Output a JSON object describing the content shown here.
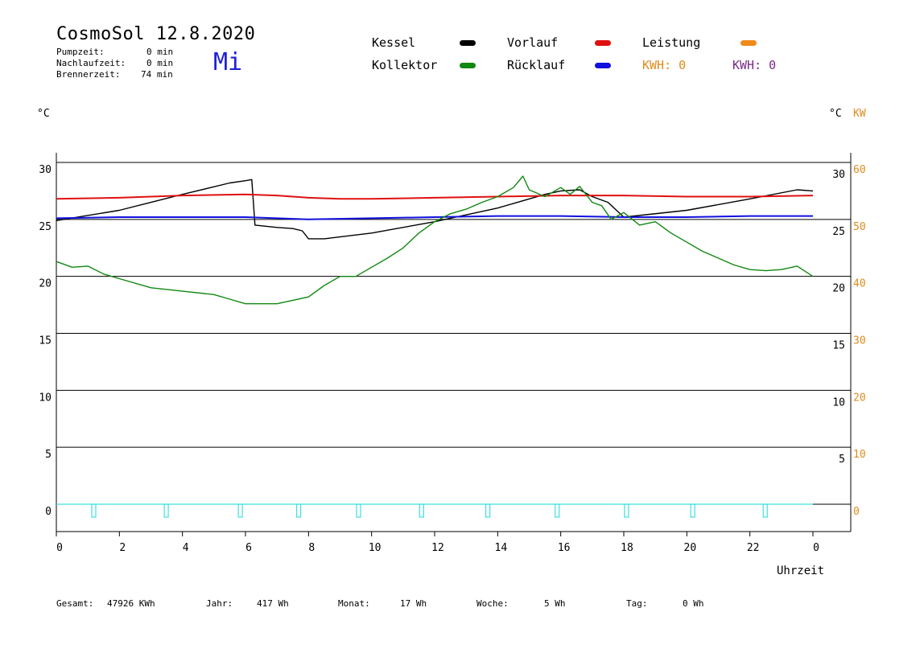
{
  "header": {
    "title": "CosmoSol 12.8.2020",
    "day": "Mi",
    "stats": [
      {
        "label": "Pumpzeit:",
        "value": "0 min"
      },
      {
        "label": "Nachlaufzeit:",
        "value": "0 min"
      },
      {
        "label": "Brennerzeit:",
        "value": "74 min"
      }
    ]
  },
  "legend": {
    "kessel": {
      "label": "Kessel",
      "color": "#000000"
    },
    "vorlauf": {
      "label": "Vorlauf",
      "color": "#e01010"
    },
    "leistung": {
      "label": "Leistung",
      "color": "#f08a1a"
    },
    "kollektor": {
      "label": "Kollektor",
      "color": "#118811"
    },
    "ruecklauf": {
      "label": "Rücklauf",
      "color": "#1010e0"
    },
    "kwh_orange": "KWH: 0",
    "kwh_purple": "KWH: 0"
  },
  "axes": {
    "left_unit": "°C",
    "right_unit_c": "°C",
    "right_unit_kw": "KW",
    "xlabel": "Uhrzeit"
  },
  "footer": {
    "gesamt_label": "Gesamt:",
    "gesamt_value": "47926 KWh",
    "jahr_label": "Jahr:",
    "jahr_value": "417 Wh",
    "monat_label": "Monat:",
    "monat_value": "17 Wh",
    "woche_label": "Woche:",
    "woche_value": "5 Wh",
    "tag_label": "Tag:",
    "tag_value": "0 Wh"
  },
  "chart_data": {
    "type": "line",
    "xlim": [
      0,
      24
    ],
    "ylim_left": [
      0,
      30
    ],
    "ylim_right_kw": [
      0,
      60
    ],
    "grid": true,
    "x_ticks": [
      "0",
      "2",
      "4",
      "6",
      "8",
      "10",
      "12",
      "14",
      "16",
      "18",
      "20",
      "22",
      "0"
    ],
    "y_ticks_left": [
      "30",
      "25",
      "20",
      "15",
      "10",
      "5",
      "0"
    ],
    "y_ticks_right_c": [
      "30",
      "25",
      "20",
      "15",
      "10",
      "5"
    ],
    "y_ticks_right_kw": [
      "60",
      "50",
      "40",
      "30",
      "20",
      "10",
      "0"
    ],
    "series": [
      {
        "name": "Kessel",
        "color": "#000000",
        "x": [
          0,
          2,
          4,
          5.5,
          6,
          6.2,
          6.3,
          7,
          7.5,
          7.8,
          8,
          8.5,
          10,
          12,
          14,
          15.5,
          16,
          16.6,
          17,
          17.5,
          18,
          20,
          22,
          23.5,
          24
        ],
        "y": [
          24.9,
          25.8,
          27.2,
          28.2,
          28.4,
          28.5,
          24.5,
          24.3,
          24.2,
          24.0,
          23.3,
          23.3,
          23.8,
          24.8,
          26.0,
          27.2,
          27.5,
          27.6,
          27.0,
          26.5,
          25.2,
          25.8,
          26.8,
          27.6,
          27.5
        ]
      },
      {
        "name": "Vorlauf",
        "color": "#e01010",
        "x": [
          0,
          2,
          4,
          6,
          7,
          8,
          9,
          10,
          12,
          14,
          16,
          18,
          20,
          22,
          24
        ],
        "y": [
          26.8,
          26.9,
          27.1,
          27.2,
          27.1,
          26.9,
          26.8,
          26.8,
          26.9,
          27.0,
          27.1,
          27.1,
          27.0,
          27.0,
          27.1
        ]
      },
      {
        "name": "Rücklauf",
        "color": "#1010e0",
        "x": [
          0,
          2,
          4,
          6,
          8,
          10,
          12,
          14,
          16,
          18,
          20,
          22,
          24
        ],
        "y": [
          25.1,
          25.2,
          25.2,
          25.2,
          25.0,
          25.1,
          25.2,
          25.3,
          25.3,
          25.2,
          25.2,
          25.3,
          25.3
        ]
      },
      {
        "name": "Kollektor",
        "color": "#118811",
        "x": [
          0,
          0.5,
          1,
          1.5,
          2,
          3,
          4,
          5,
          5.5,
          6,
          6.5,
          7,
          7.5,
          8,
          8.5,
          9,
          9.5,
          10,
          10.5,
          11,
          11.5,
          12,
          12.5,
          13,
          13.5,
          14,
          14.5,
          14.8,
          15,
          15.5,
          16,
          16.3,
          16.6,
          17,
          17.3,
          17.6,
          18,
          18.5,
          19,
          19.5,
          20,
          20.5,
          21,
          21.5,
          22,
          22.5,
          23,
          23.5,
          24
        ],
        "y": [
          21.3,
          20.8,
          20.9,
          20.2,
          19.8,
          19.0,
          18.7,
          18.4,
          18.0,
          17.6,
          17.6,
          17.6,
          17.9,
          18.2,
          19.2,
          20.0,
          20.0,
          20.8,
          21.6,
          22.5,
          23.8,
          24.8,
          25.5,
          25.9,
          26.5,
          27.0,
          27.8,
          28.8,
          27.6,
          27.0,
          27.8,
          27.2,
          27.9,
          26.5,
          26.2,
          25.0,
          25.6,
          24.5,
          24.8,
          23.8,
          23.0,
          22.2,
          21.6,
          21.0,
          20.6,
          20.5,
          20.6,
          20.9,
          20.0
        ]
      },
      {
        "name": "Leistung",
        "color": "#40e0e0",
        "x": [
          0,
          1.15,
          1.2,
          3.5,
          5.85,
          7.7,
          9.6,
          11.6,
          13.7,
          15.9,
          18.1,
          20.2,
          22.5,
          24
        ],
        "y": [
          0,
          0,
          0,
          0,
          0,
          0,
          0,
          0,
          0,
          0,
          0,
          0,
          0,
          0
        ],
        "pulses_at": [
          1.2,
          3.5,
          5.85,
          7.7,
          9.6,
          11.6,
          13.7,
          15.9,
          18.1,
          20.2,
          22.5
        ]
      }
    ]
  }
}
